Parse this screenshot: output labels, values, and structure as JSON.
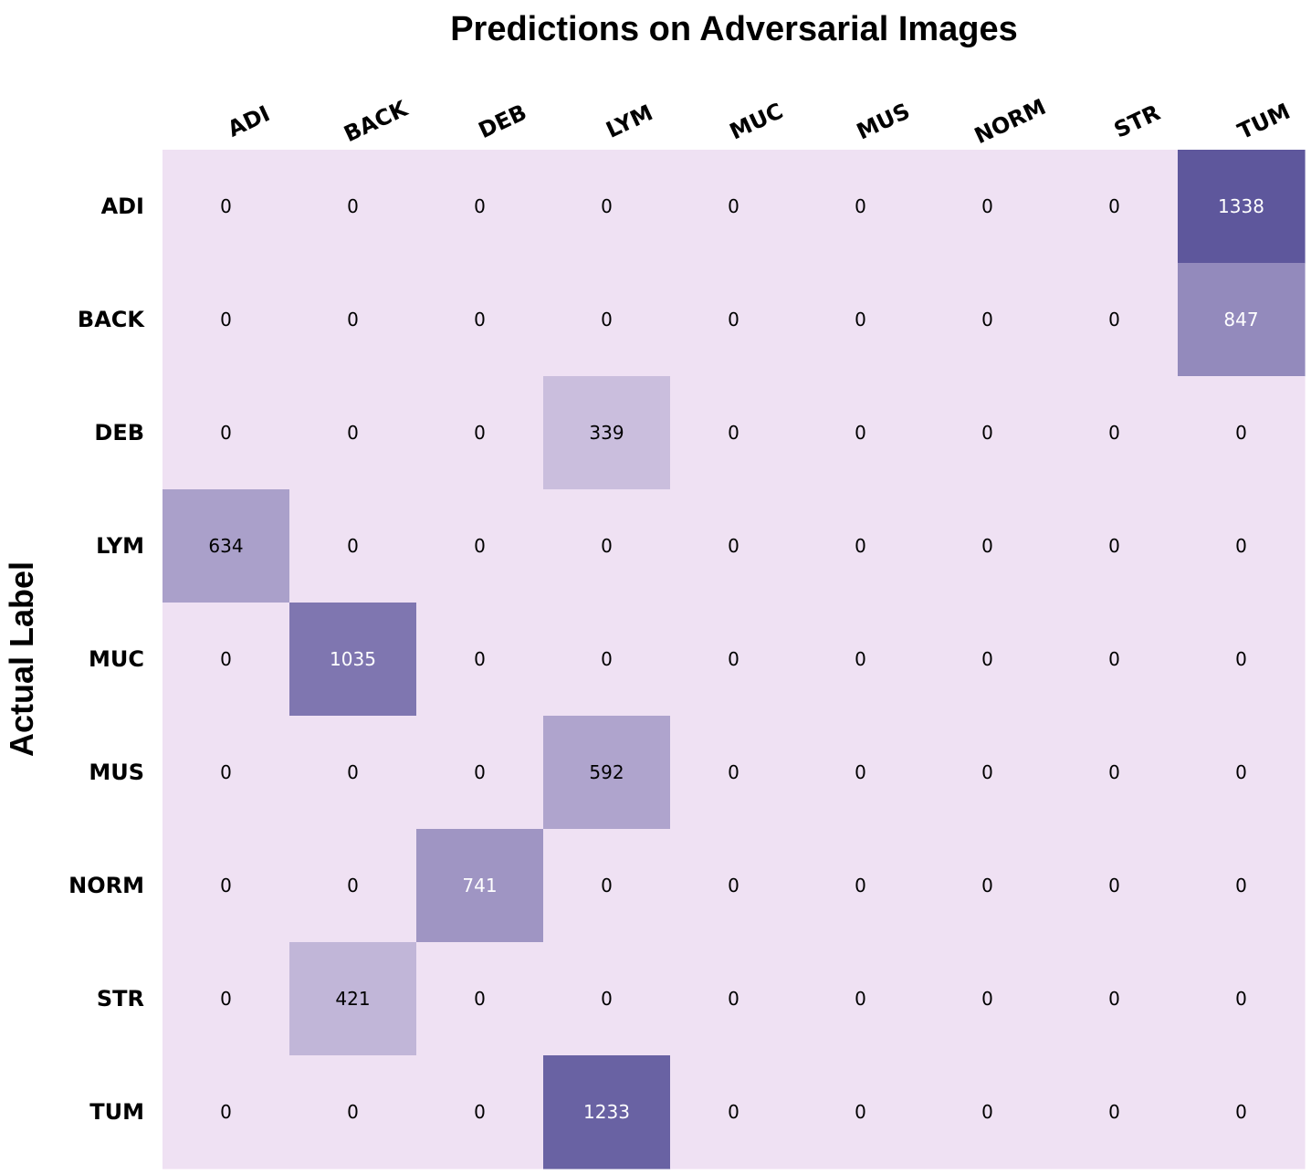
{
  "chart_data": {
    "type": "heatmap",
    "title": "Predictions on Adversarial Images",
    "ylabel": "Actual Label",
    "xlabel": "",
    "x_categories": [
      "ADI",
      "BACK",
      "DEB",
      "LYM",
      "MUC",
      "MUS",
      "NORM",
      "STR",
      "TUM"
    ],
    "y_categories": [
      "ADI",
      "BACK",
      "DEB",
      "LYM",
      "MUC",
      "MUS",
      "NORM",
      "STR",
      "TUM"
    ],
    "values": [
      [
        0,
        0,
        0,
        0,
        0,
        0,
        0,
        0,
        1338
      ],
      [
        0,
        0,
        0,
        0,
        0,
        0,
        0,
        0,
        847
      ],
      [
        0,
        0,
        0,
        339,
        0,
        0,
        0,
        0,
        0
      ],
      [
        634,
        0,
        0,
        0,
        0,
        0,
        0,
        0,
        0
      ],
      [
        0,
        1035,
        0,
        0,
        0,
        0,
        0,
        0,
        0
      ],
      [
        0,
        0,
        0,
        592,
        0,
        0,
        0,
        0,
        0
      ],
      [
        0,
        0,
        741,
        0,
        0,
        0,
        0,
        0,
        0
      ],
      [
        0,
        421,
        0,
        0,
        0,
        0,
        0,
        0,
        0
      ],
      [
        0,
        0,
        0,
        1233,
        0,
        0,
        0,
        0,
        0
      ]
    ],
    "x_ticks_position": "top",
    "colormap": "purples",
    "color_low": "#efe1f3",
    "color_high": "#5e579c",
    "text_color_dark": "#000000",
    "text_color_light": "#ffffff"
  }
}
